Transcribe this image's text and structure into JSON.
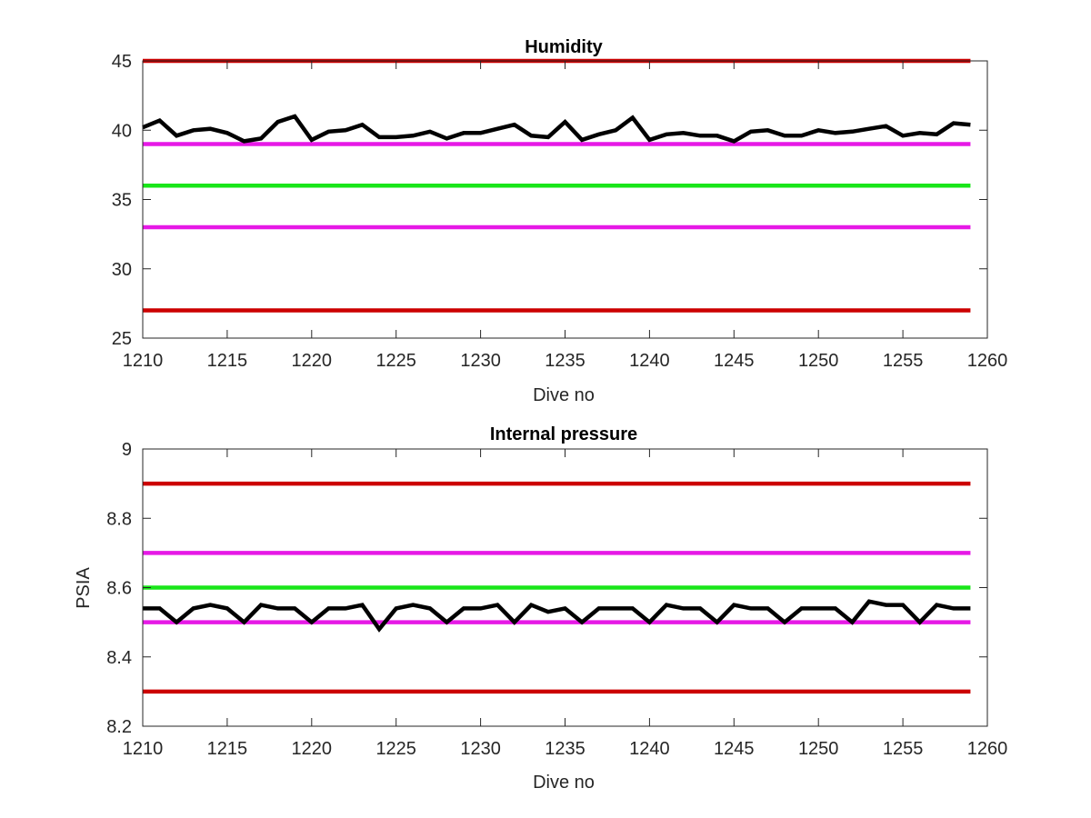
{
  "chart_data": [
    {
      "type": "line",
      "title": "Humidity",
      "xlabel": "Dive no",
      "ylabel": "",
      "xlim": [
        1210,
        1260
      ],
      "ylim": [
        25,
        45
      ],
      "xticks": [
        1210,
        1215,
        1220,
        1225,
        1230,
        1235,
        1240,
        1245,
        1250,
        1255,
        1260
      ],
      "yticks": [
        25,
        30,
        35,
        40,
        45
      ],
      "grid": false,
      "thresholds": [
        {
          "y": 45,
          "color": "#cc0000"
        },
        {
          "y": 39,
          "color": "#e619e6"
        },
        {
          "y": 36,
          "color": "#19e619"
        },
        {
          "y": 33,
          "color": "#e619e6"
        },
        {
          "y": 27,
          "color": "#cc0000"
        }
      ],
      "series": [
        {
          "color": "#000000",
          "x": [
            1210,
            1211,
            1212,
            1213,
            1214,
            1215,
            1216,
            1217,
            1218,
            1219,
            1220,
            1221,
            1222,
            1223,
            1224,
            1225,
            1226,
            1227,
            1228,
            1229,
            1230,
            1231,
            1232,
            1233,
            1234,
            1235,
            1236,
            1237,
            1238,
            1239,
            1240,
            1241,
            1242,
            1243,
            1244,
            1245,
            1246,
            1247,
            1248,
            1249,
            1250,
            1251,
            1252,
            1253,
            1254,
            1255,
            1256,
            1257,
            1258,
            1259
          ],
          "y": [
            40.2,
            40.7,
            39.6,
            40.0,
            40.1,
            39.8,
            39.2,
            39.4,
            40.6,
            41.0,
            39.3,
            39.9,
            40.0,
            40.4,
            39.5,
            39.5,
            39.6,
            39.9,
            39.4,
            39.8,
            39.8,
            40.1,
            40.4,
            39.6,
            39.5,
            40.6,
            39.3,
            39.7,
            40.0,
            40.9,
            39.3,
            39.7,
            39.8,
            39.6,
            39.6,
            39.2,
            39.9,
            40.0,
            39.6,
            39.6,
            40.0,
            39.8,
            39.9,
            40.1,
            40.3,
            39.6,
            39.8,
            39.7,
            40.5,
            40.4
          ]
        }
      ]
    },
    {
      "type": "line",
      "title": "Internal pressure",
      "xlabel": "Dive no",
      "ylabel": "PSIA",
      "xlim": [
        1210,
        1260
      ],
      "ylim": [
        8.2,
        9.0
      ],
      "xticks": [
        1210,
        1215,
        1220,
        1225,
        1230,
        1235,
        1240,
        1245,
        1250,
        1255,
        1260
      ],
      "yticks": [
        8.2,
        8.4,
        8.6,
        8.8,
        9
      ],
      "grid": false,
      "thresholds": [
        {
          "y": 8.9,
          "color": "#cc0000"
        },
        {
          "y": 8.7,
          "color": "#e619e6"
        },
        {
          "y": 8.6,
          "color": "#19e619"
        },
        {
          "y": 8.5,
          "color": "#e619e6"
        },
        {
          "y": 8.3,
          "color": "#cc0000"
        }
      ],
      "series": [
        {
          "color": "#000000",
          "x": [
            1210,
            1211,
            1212,
            1213,
            1214,
            1215,
            1216,
            1217,
            1218,
            1219,
            1220,
            1221,
            1222,
            1223,
            1224,
            1225,
            1226,
            1227,
            1228,
            1229,
            1230,
            1231,
            1232,
            1233,
            1234,
            1235,
            1236,
            1237,
            1238,
            1239,
            1240,
            1241,
            1242,
            1243,
            1244,
            1245,
            1246,
            1247,
            1248,
            1249,
            1250,
            1251,
            1252,
            1253,
            1254,
            1255,
            1256,
            1257,
            1258,
            1259
          ],
          "y": [
            8.54,
            8.54,
            8.5,
            8.54,
            8.55,
            8.54,
            8.5,
            8.55,
            8.54,
            8.54,
            8.5,
            8.54,
            8.54,
            8.55,
            8.48,
            8.54,
            8.55,
            8.54,
            8.5,
            8.54,
            8.54,
            8.55,
            8.5,
            8.55,
            8.53,
            8.54,
            8.5,
            8.54,
            8.54,
            8.54,
            8.5,
            8.55,
            8.54,
            8.54,
            8.5,
            8.55,
            8.54,
            8.54,
            8.5,
            8.54,
            8.54,
            8.54,
            8.5,
            8.56,
            8.55,
            8.55,
            8.5,
            8.55,
            8.54,
            8.54
          ]
        }
      ]
    }
  ]
}
